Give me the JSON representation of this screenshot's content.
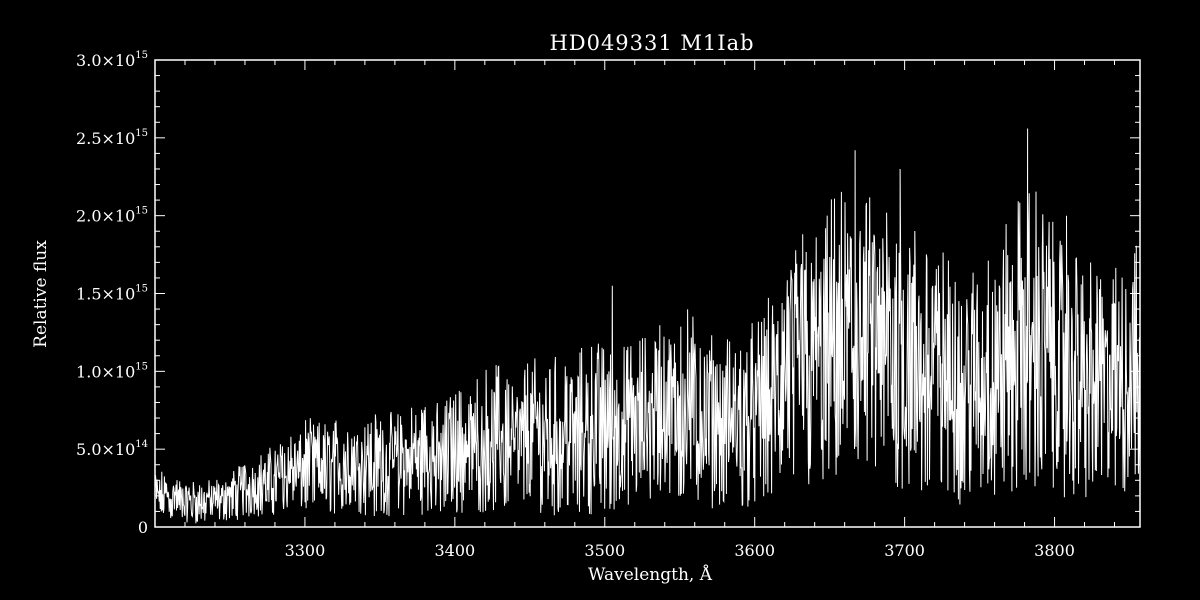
{
  "chart_data": {
    "type": "line",
    "title": "HD049331  M1Iab",
    "xlabel": "Wavelength, Å",
    "ylabel": "Relative flux",
    "xlim": [
      3200,
      3857
    ],
    "ylim": [
      0,
      3000000000000000.0
    ],
    "x_ticks": [
      3300,
      3400,
      3500,
      3600,
      3700,
      3800
    ],
    "x_tick_labels": [
      "3300",
      "3400",
      "3500",
      "3600",
      "3700",
      "3800"
    ],
    "y_ticks": [
      {
        "value": 0,
        "mantissa": "0",
        "exponent": ""
      },
      {
        "value": 500000000000000.0,
        "mantissa": "5.0×10",
        "exponent": "14"
      },
      {
        "value": 1000000000000000.0,
        "mantissa": "1.0×10",
        "exponent": "15"
      },
      {
        "value": 1500000000000000.0,
        "mantissa": "1.5×10",
        "exponent": "15"
      },
      {
        "value": 2000000000000000.0,
        "mantissa": "2.0×10",
        "exponent": "15"
      },
      {
        "value": 2500000000000000.0,
        "mantissa": "2.5×10",
        "exponent": "15"
      },
      {
        "value": 3000000000000000.0,
        "mantissa": "3.0×10",
        "exponent": "15"
      }
    ],
    "grid": false,
    "series": [
      {
        "color": "#ffffff",
        "x": [
          3200,
          3210,
          3220,
          3230,
          3240,
          3250,
          3260,
          3270,
          3280,
          3290,
          3300,
          3310,
          3320,
          3330,
          3340,
          3350,
          3360,
          3370,
          3380,
          3390,
          3400,
          3410,
          3420,
          3430,
          3440,
          3450,
          3460,
          3470,
          3480,
          3490,
          3500,
          3510,
          3520,
          3530,
          3540,
          3550,
          3560,
          3570,
          3580,
          3590,
          3600,
          3610,
          3620,
          3630,
          3640,
          3650,
          3660,
          3670,
          3680,
          3690,
          3700,
          3710,
          3720,
          3730,
          3740,
          3750,
          3760,
          3770,
          3780,
          3790,
          3800,
          3810,
          3820,
          3830,
          3840,
          3850,
          3857
        ],
        "mean": [
          200000000000000.0,
          180000000000000.0,
          160000000000000.0,
          150000000000000.0,
          160000000000000.0,
          190000000000000.0,
          230000000000000.0,
          260000000000000.0,
          290000000000000.0,
          330000000000000.0,
          360000000000000.0,
          340000000000000.0,
          350000000000000.0,
          360000000000000.0,
          350000000000000.0,
          370000000000000.0,
          360000000000000.0,
          380000000000000.0,
          400000000000000.0,
          390000000000000.0,
          420000000000000.0,
          450000000000000.0,
          490000000000000.0,
          500000000000000.0,
          480000000000000.0,
          510000000000000.0,
          530000000000000.0,
          520000000000000.0,
          540000000000000.0,
          560000000000000.0,
          580000000000000.0,
          560000000000000.0,
          590000000000000.0,
          630000000000000.0,
          700000000000000.0,
          720000000000000.0,
          680000000000000.0,
          630000000000000.0,
          600000000000000.0,
          620000000000000.0,
          650000000000000.0,
          700000000000000.0,
          820000000000000.0,
          880000000000000.0,
          950000000000000.0,
          1000000000000000.0,
          1050000000000000.0,
          1000000000000000.0,
          1020000000000000.0,
          1000000000000000.0,
          970000000000000.0,
          940000000000000.0,
          900000000000000.0,
          860000000000000.0,
          820000000000000.0,
          860000000000000.0,
          900000000000000.0,
          960000000000000.0,
          1050000000000000.0,
          1020000000000000.0,
          960000000000000.0,
          900000000000000.0,
          850000000000000.0,
          820000000000000.0,
          860000000000000.0,
          920000000000000.0,
          1000000000000000.0
        ],
        "envelope": [
          380000000000000.0,
          320000000000000.0,
          300000000000000.0,
          290000000000000.0,
          300000000000000.0,
          350000000000000.0,
          420000000000000.0,
          460000000000000.0,
          520000000000000.0,
          620000000000000.0,
          700000000000000.0,
          660000000000000.0,
          680000000000000.0,
          720000000000000.0,
          700000000000000.0,
          740000000000000.0,
          720000000000000.0,
          760000000000000.0,
          800000000000000.0,
          780000000000000.0,
          860000000000000.0,
          920000000000000.0,
          1000000000000000.0,
          1050000000000000.0,
          1000000000000000.0,
          1080000000000000.0,
          1100000000000000.0,
          1080000000000000.0,
          1120000000000000.0,
          1150000000000000.0,
          1200000000000000.0,
          1120000000000000.0,
          1180000000000000.0,
          1250000000000000.0,
          1380000000000000.0,
          1450000000000000.0,
          1350000000000000.0,
          1250000000000000.0,
          1180000000000000.0,
          1220000000000000.0,
          1300000000000000.0,
          1450000000000000.0,
          1700000000000000.0,
          1800000000000000.0,
          1900000000000000.0,
          2050000000000000.0,
          2150000000000000.0,
          2050000000000000.0,
          2100000000000000.0,
          2050000000000000.0,
          2000000000000000.0,
          1900000000000000.0,
          1800000000000000.0,
          1700000000000000.0,
          1600000000000000.0,
          1700000000000000.0,
          1850000000000000.0,
          1950000000000000.0,
          2150000000000000.0,
          2100000000000000.0,
          1950000000000000.0,
          1850000000000000.0,
          1700000000000000.0,
          1600000000000000.0,
          1650000000000000.0,
          1750000000000000.0,
          1800000000000000.0
        ],
        "minimum": [
          50000000000000.0,
          40000000000000.0,
          30000000000000.0,
          20000000000000.0,
          30000000000000.0,
          40000000000000.0,
          50000000000000.0,
          60000000000000.0,
          80000000000000.0,
          100000000000000.0,
          90000000000000.0,
          70000000000000.0,
          80000000000000.0,
          60000000000000.0,
          70000000000000.0,
          50000000000000.0,
          60000000000000.0,
          70000000000000.0,
          80000000000000.0,
          60000000000000.0,
          70000000000000.0,
          80000000000000.0,
          90000000000000.0,
          100000000000000.0,
          80000000000000.0,
          90000000000000.0,
          80000000000000.0,
          70000000000000.0,
          90000000000000.0,
          80000000000000.0,
          100000000000000.0,
          90000000000000.0,
          110000000000000.0,
          120000000000000.0,
          140000000000000.0,
          150000000000000.0,
          130000000000000.0,
          120000000000000.0,
          110000000000000.0,
          120000000000000.0,
          130000000000000.0,
          150000000000000.0,
          180000000000000.0,
          200000000000000.0,
          220000000000000.0,
          230000000000000.0,
          240000000000000.0,
          220000000000000.0,
          230000000000000.0,
          210000000000000.0,
          200000000000000.0,
          180000000000000.0,
          160000000000000.0,
          140000000000000.0,
          130000000000000.0,
          150000000000000.0,
          180000000000000.0,
          200000000000000.0,
          240000000000000.0,
          220000000000000.0,
          200000000000000.0,
          180000000000000.0,
          160000000000000.0,
          150000000000000.0,
          170000000000000.0,
          190000000000000.0,
          220000000000000.0
        ]
      }
    ],
    "peaks": [
      {
        "x": 3505,
        "y": 1550000000000000.0
      },
      {
        "x": 3632,
        "y": 1880000000000000.0
      },
      {
        "x": 3667,
        "y": 2420000000000000.0
      },
      {
        "x": 3782,
        "y": 2560000000000000.0
      },
      {
        "x": 3688,
        "y": 2020000000000000.0
      },
      {
        "x": 3697,
        "y": 2300000000000000.0
      },
      {
        "x": 3808,
        "y": 2000000000000000.0
      }
    ]
  }
}
